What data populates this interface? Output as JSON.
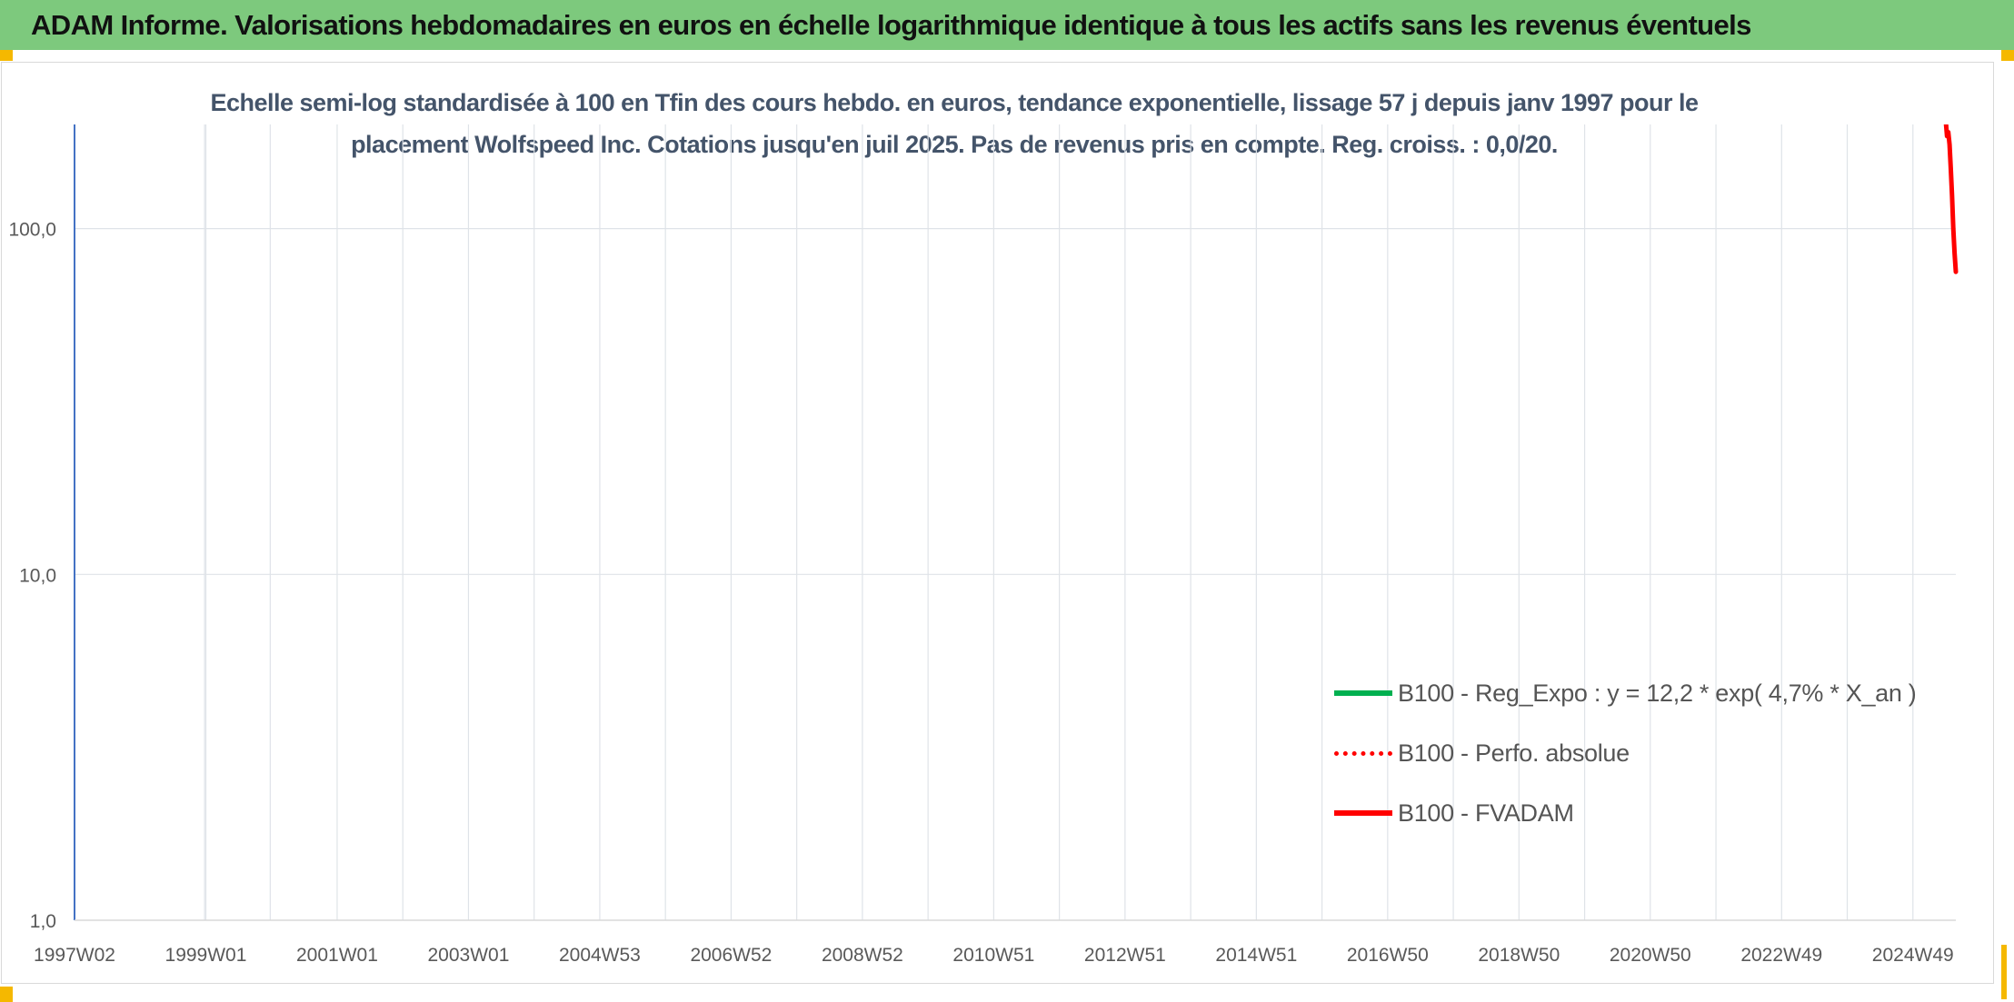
{
  "banner": {
    "title": "ADAM Informe. Valorisations hebdomadaires en euros en échelle logarithmique identique à tous les actifs sans les revenus éventuels"
  },
  "colors": {
    "banner_bg": "#7dc97d",
    "corner_accent": "#f5b800",
    "subtitle_text": "#44546a",
    "regression_line": "#00b050",
    "perf_absolue_line": "#ff0000",
    "fvadam_line": "#ff0000",
    "y_axis_line": "#4472c4"
  },
  "chart_data": {
    "type": "line",
    "title_line1": "Echelle semi-log standardisée à 100 en Tfin des cours hebdo. en euros, tendance exponentielle, lissage 57 j depuis janv 1997 pour le",
    "title_line2": "placement Wolfspeed Inc. Cotations jusqu'en juil 2025. Pas de revenus pris en compte. Reg. croiss. : 0,0/20.",
    "y_scale": "log",
    "ylim": [
      1,
      200
    ],
    "xlim": [
      "1997-01-06",
      "2025-07-28"
    ],
    "y_ticks": [
      {
        "value": 1,
        "label": "1,0"
      },
      {
        "value": 10,
        "label": "10,0"
      },
      {
        "value": 100,
        "label": "100,0"
      }
    ],
    "x_ticks": [
      {
        "date": "1997-01-06",
        "label": "1997W02"
      },
      {
        "date": "1998-12-28",
        "label": null
      },
      {
        "date": "1999-01-04",
        "label": "1999W01"
      },
      {
        "date": "1999-12-27",
        "label": null
      },
      {
        "date": "2001-01-01",
        "label": "2001W01"
      },
      {
        "date": "2001-12-31",
        "label": null
      },
      {
        "date": "2002-12-30",
        "label": "2003W01"
      },
      {
        "date": "2003-12-29",
        "label": null
      },
      {
        "date": "2004-12-27",
        "label": "2004W53"
      },
      {
        "date": "2005-12-26",
        "label": null
      },
      {
        "date": "2006-12-25",
        "label": "2006W52"
      },
      {
        "date": "2007-12-24",
        "label": null
      },
      {
        "date": "2008-12-22",
        "label": "2008W52"
      },
      {
        "date": "2009-12-21",
        "label": null
      },
      {
        "date": "2010-12-20",
        "label": "2010W51"
      },
      {
        "date": "2011-12-19",
        "label": null
      },
      {
        "date": "2012-12-17",
        "label": "2012W51"
      },
      {
        "date": "2013-12-16",
        "label": null
      },
      {
        "date": "2014-12-15",
        "label": "2014W51"
      },
      {
        "date": "2015-12-14",
        "label": null
      },
      {
        "date": "2016-12-12",
        "label": "2016W50"
      },
      {
        "date": "2017-12-11",
        "label": null
      },
      {
        "date": "2018-12-10",
        "label": "2018W50"
      },
      {
        "date": "2019-12-09",
        "label": null
      },
      {
        "date": "2020-12-07",
        "label": "2020W50"
      },
      {
        "date": "2021-12-06",
        "label": null
      },
      {
        "date": "2022-12-05",
        "label": "2022W49"
      },
      {
        "date": "2023-12-04",
        "label": null
      },
      {
        "date": "2024-12-02",
        "label": "2024W49"
      }
    ],
    "grid": true,
    "legend_position": "bottom-right",
    "series": [
      {
        "name": "B100 - Reg_Expo : y = 12,2 * exp( 4,7% *  X_an )",
        "style": "solid",
        "color": "#00b050",
        "points": []
      },
      {
        "name": "B100 - Perfo. absolue",
        "style": "dotted",
        "color": "#ff0000",
        "points": []
      },
      {
        "name": "B100 - FVADAM",
        "style": "solid",
        "color": "#ff0000",
        "points": [
          {
            "x": "2025-06-02",
            "y": 205
          },
          {
            "x": "2025-06-09",
            "y": 185
          },
          {
            "x": "2025-06-16",
            "y": 190
          },
          {
            "x": "2025-06-23",
            "y": 175
          },
          {
            "x": "2025-06-30",
            "y": 150
          },
          {
            "x": "2025-07-07",
            "y": 125
          },
          {
            "x": "2025-07-14",
            "y": 100
          },
          {
            "x": "2025-07-21",
            "y": 85
          },
          {
            "x": "2025-07-28",
            "y": 75
          }
        ]
      }
    ]
  }
}
